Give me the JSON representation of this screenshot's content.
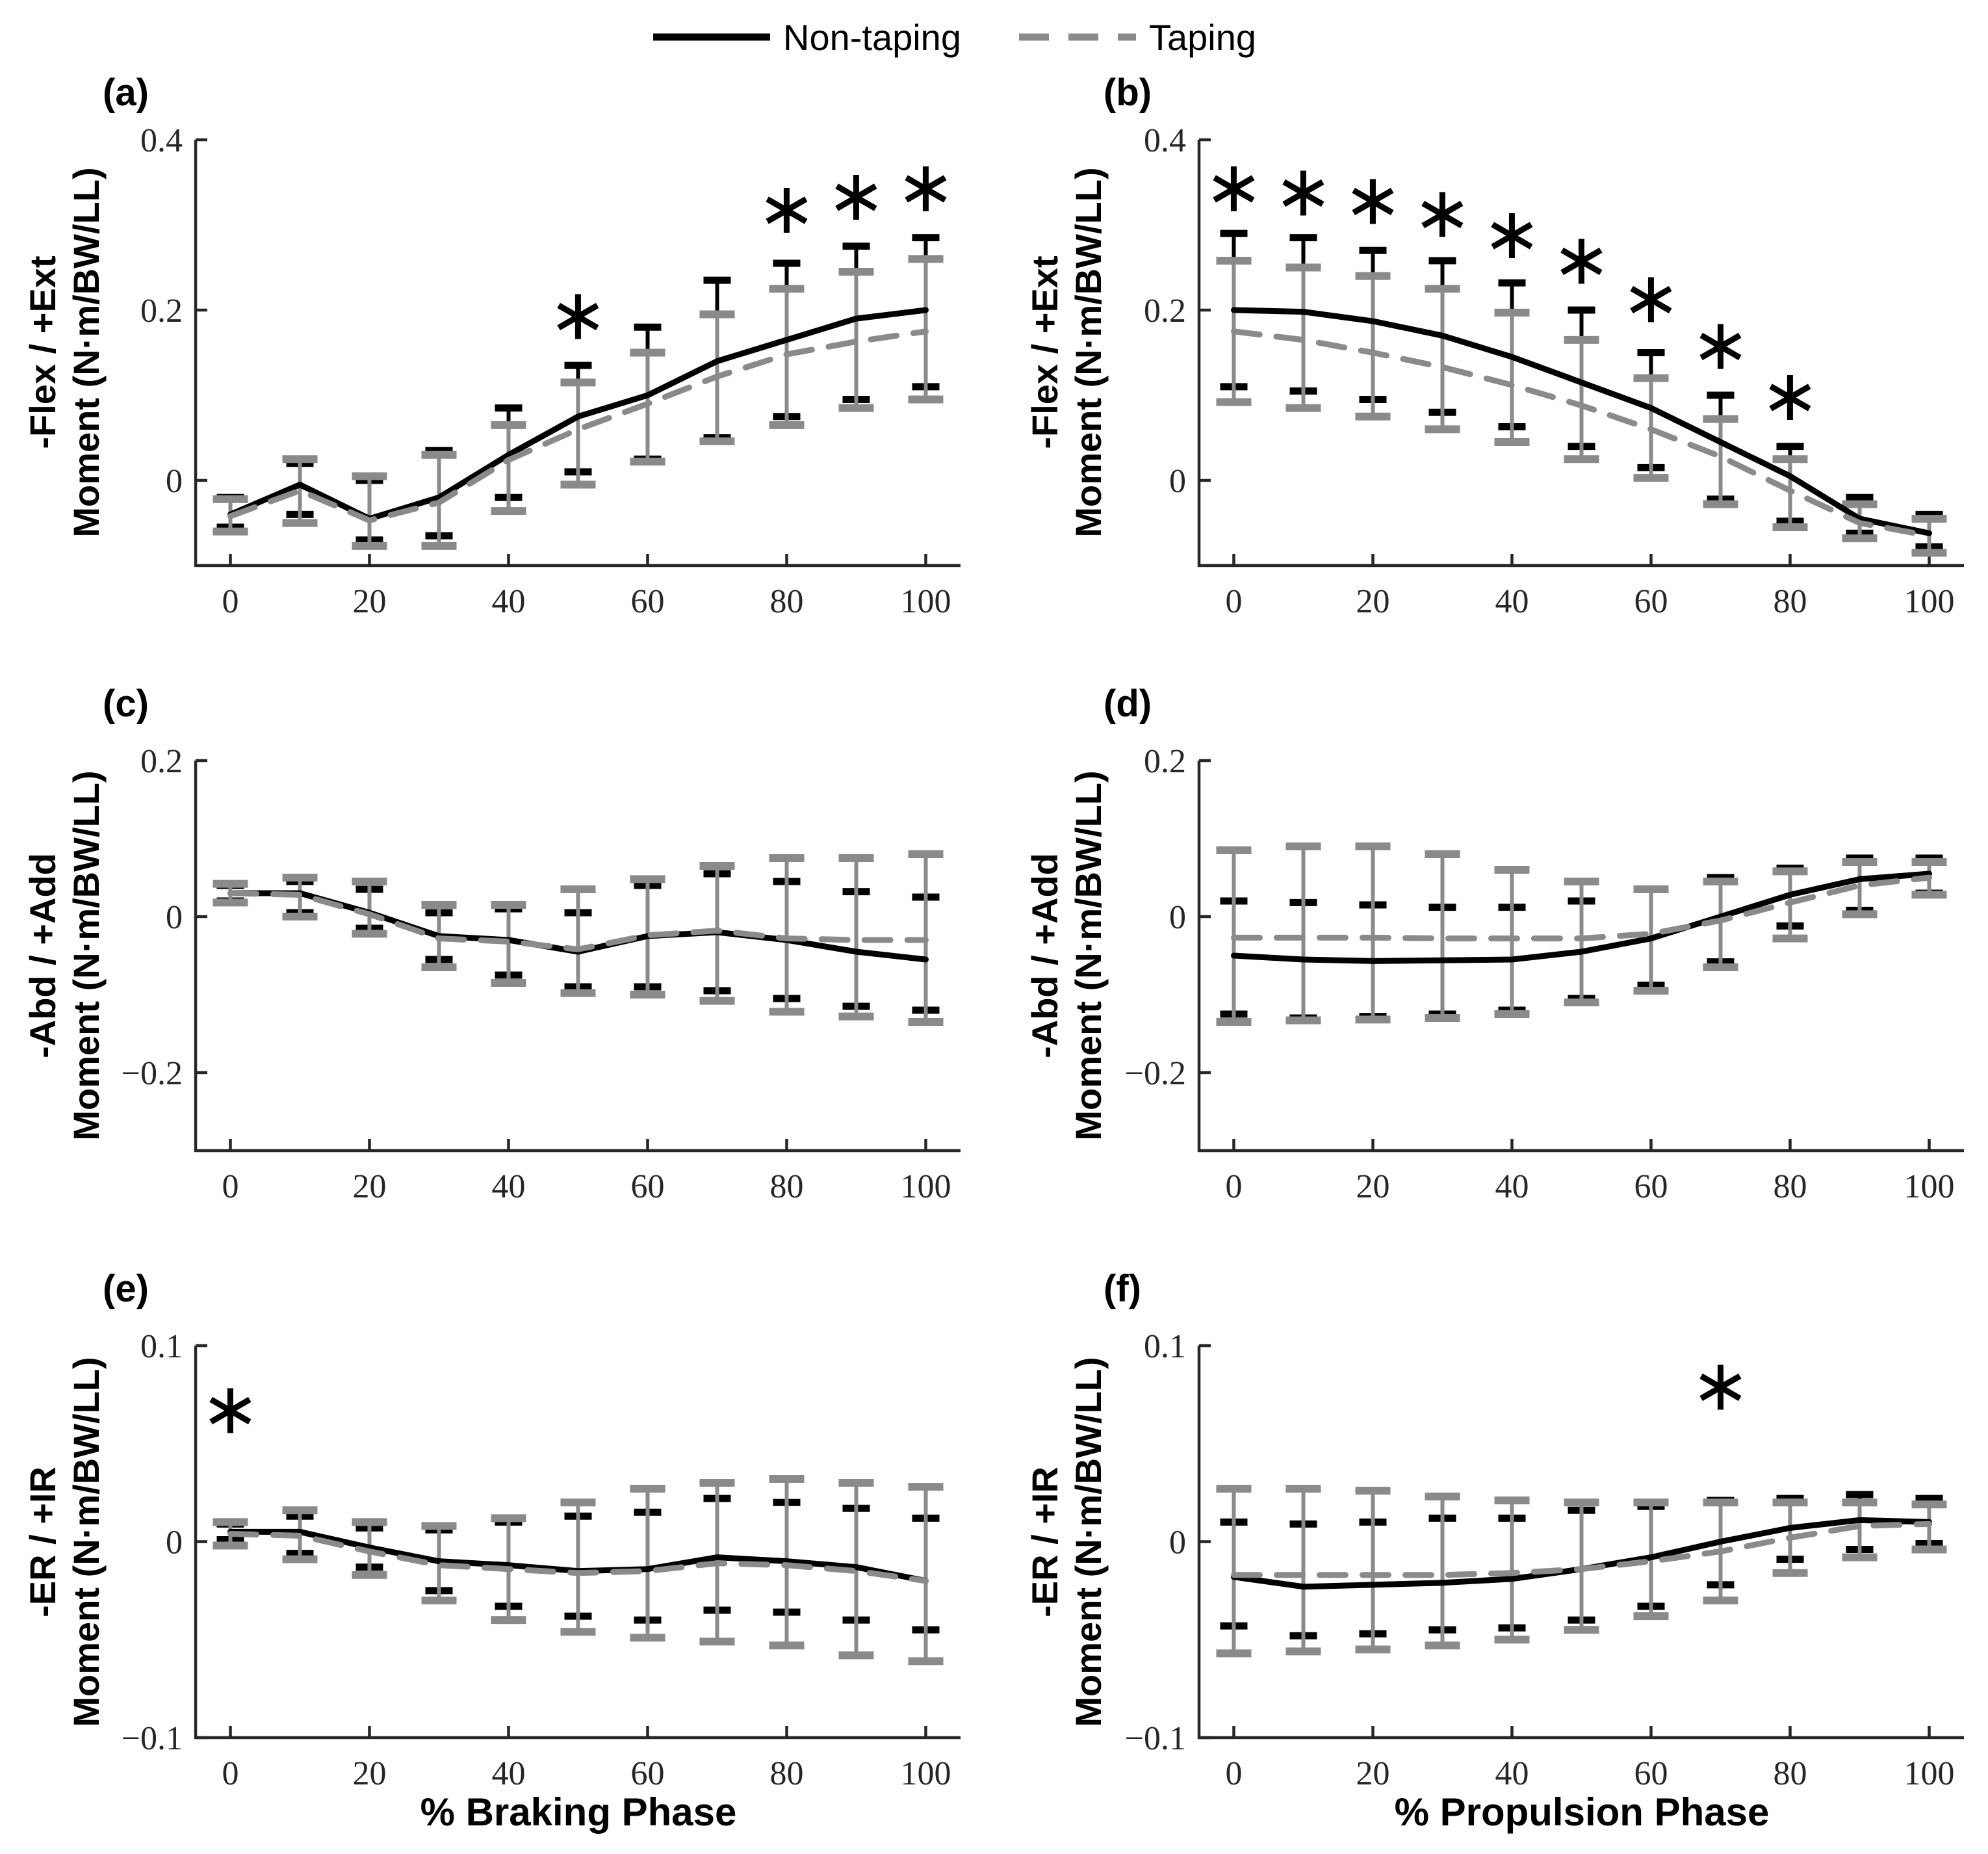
{
  "legend": {
    "entries": [
      {
        "label": "Non-taping",
        "style": "solid",
        "color": "#000000"
      },
      {
        "label": "Taping",
        "style": "dashed",
        "color": "#8a8a8a"
      }
    ]
  },
  "chart_data": [
    {
      "id": "a",
      "type": "line",
      "panel_label": "(a)",
      "ylabel_line1": "-Flex / +Ext",
      "ylabel_line2": "Moment (N·m/BW/LL)",
      "xlabel": "",
      "x": [
        0,
        10,
        20,
        30,
        40,
        50,
        60,
        70,
        80,
        90,
        100
      ],
      "xlim": [
        -5,
        105
      ],
      "ylim": [
        -0.1,
        0.4
      ],
      "xtick_values": [
        0,
        20,
        40,
        60,
        80,
        100
      ],
      "xtick_labels": [
        "0",
        "20",
        "40",
        "60",
        "80",
        "100"
      ],
      "ytick_values": [
        0,
        0.2,
        0.4
      ],
      "ytick_labels": [
        "0",
        "0.2",
        "0.4"
      ],
      "series": [
        {
          "name": "Non-taping",
          "color": "#000000",
          "style": "solid",
          "values": [
            -0.04,
            -0.005,
            -0.045,
            -0.02,
            0.03,
            0.075,
            0.1,
            0.14,
            0.165,
            0.19,
            0.2
          ],
          "err_up": [
            -0.02,
            0.02,
            0.0,
            0.035,
            0.085,
            0.135,
            0.18,
            0.235,
            0.255,
            0.275,
            0.285
          ],
          "err_lo": [
            -0.055,
            -0.04,
            -0.07,
            -0.065,
            -0.02,
            0.01,
            0.025,
            0.05,
            0.075,
            0.095,
            0.11
          ]
        },
        {
          "name": "Taping",
          "color": "#8a8a8a",
          "style": "dashed",
          "values": [
            -0.042,
            -0.012,
            -0.047,
            -0.026,
            0.024,
            0.06,
            0.09,
            0.122,
            0.148,
            0.163,
            0.175
          ],
          "err_up": [
            -0.022,
            0.025,
            0.005,
            0.03,
            0.065,
            0.115,
            0.15,
            0.195,
            0.225,
            0.245,
            0.26
          ],
          "err_lo": [
            -0.06,
            -0.05,
            -0.077,
            -0.077,
            -0.036,
            -0.005,
            0.022,
            0.046,
            0.065,
            0.085,
            0.095
          ]
        }
      ],
      "asterisks": [
        {
          "x": 50,
          "y": 0.195
        },
        {
          "x": 80,
          "y": 0.32
        },
        {
          "x": 90,
          "y": 0.335
        },
        {
          "x": 100,
          "y": 0.345
        }
      ]
    },
    {
      "id": "b",
      "type": "line",
      "panel_label": "(b)",
      "ylabel_line1": "-Flex / +Ext",
      "ylabel_line2": "Moment (N·m/BW/LL)",
      "xlabel": "",
      "x": [
        0,
        10,
        20,
        30,
        40,
        50,
        60,
        70,
        80,
        90,
        100
      ],
      "xlim": [
        -5,
        105
      ],
      "ylim": [
        -0.1,
        0.4
      ],
      "xtick_values": [
        0,
        20,
        40,
        60,
        80,
        100
      ],
      "xtick_labels": [
        "0",
        "20",
        "40",
        "60",
        "80",
        "100"
      ],
      "ytick_values": [
        0,
        0.2,
        0.4
      ],
      "ytick_labels": [
        "0",
        "0.2",
        "0.4"
      ],
      "series": [
        {
          "name": "Non-taping",
          "color": "#000000",
          "style": "solid",
          "values": [
            0.2,
            0.198,
            0.187,
            0.17,
            0.145,
            0.115,
            0.085,
            0.045,
            0.005,
            -0.045,
            -0.062
          ],
          "err_up": [
            0.29,
            0.285,
            0.27,
            0.258,
            0.232,
            0.2,
            0.15,
            0.1,
            0.04,
            -0.02,
            -0.04
          ],
          "err_lo": [
            0.11,
            0.105,
            0.095,
            0.08,
            0.063,
            0.04,
            0.015,
            -0.022,
            -0.048,
            -0.062,
            -0.078
          ]
        },
        {
          "name": "Taping",
          "color": "#8a8a8a",
          "style": "dashed",
          "values": [
            0.175,
            0.165,
            0.15,
            0.133,
            0.112,
            0.088,
            0.06,
            0.028,
            -0.012,
            -0.05,
            -0.065
          ],
          "err_up": [
            0.258,
            0.25,
            0.24,
            0.225,
            0.197,
            0.165,
            0.12,
            0.072,
            0.025,
            -0.028,
            -0.045
          ],
          "err_lo": [
            0.092,
            0.085,
            0.075,
            0.06,
            0.045,
            0.025,
            0.003,
            -0.028,
            -0.055,
            -0.068,
            -0.085
          ]
        }
      ],
      "asterisks": [
        {
          "x": 0,
          "y": 0.345
        },
        {
          "x": 10,
          "y": 0.34
        },
        {
          "x": 20,
          "y": 0.33
        },
        {
          "x": 30,
          "y": 0.315
        },
        {
          "x": 40,
          "y": 0.29
        },
        {
          "x": 50,
          "y": 0.26
        },
        {
          "x": 60,
          "y": 0.215
        },
        {
          "x": 70,
          "y": 0.16
        },
        {
          "x": 80,
          "y": 0.1
        }
      ]
    },
    {
      "id": "c",
      "type": "line",
      "panel_label": "(c)",
      "ylabel_line1": "-Abd / +Add",
      "ylabel_line2": "Moment (N·m/BW/LL)",
      "xlabel": "",
      "x": [
        0,
        10,
        20,
        30,
        40,
        50,
        60,
        70,
        80,
        90,
        100
      ],
      "xlim": [
        -5,
        105
      ],
      "ylim": [
        -0.3,
        0.2
      ],
      "xtick_values": [
        0,
        20,
        40,
        60,
        80,
        100
      ],
      "xtick_labels": [
        "0",
        "20",
        "40",
        "60",
        "80",
        "100"
      ],
      "ytick_values": [
        -0.2,
        0,
        0.2
      ],
      "ytick_labels": [
        "−0.2",
        "0",
        "0.2"
      ],
      "series": [
        {
          "name": "Non-taping",
          "color": "#000000",
          "style": "solid",
          "values": [
            0.03,
            0.03,
            0.005,
            -0.025,
            -0.03,
            -0.045,
            -0.025,
            -0.02,
            -0.03,
            -0.045,
            -0.055
          ],
          "err_up": [
            0.04,
            0.045,
            0.035,
            0.005,
            0.01,
            0.005,
            0.04,
            0.055,
            0.045,
            0.032,
            0.025
          ],
          "err_lo": [
            0.02,
            0.005,
            -0.015,
            -0.055,
            -0.075,
            -0.09,
            -0.09,
            -0.095,
            -0.105,
            -0.115,
            -0.12
          ]
        },
        {
          "name": "Taping",
          "color": "#8a8a8a",
          "style": "dashed",
          "values": [
            0.03,
            0.028,
            0.003,
            -0.028,
            -0.032,
            -0.042,
            -0.024,
            -0.018,
            -0.028,
            -0.03,
            -0.03
          ],
          "err_up": [
            0.042,
            0.05,
            0.045,
            0.015,
            0.015,
            0.035,
            0.048,
            0.065,
            0.075,
            0.075,
            0.08
          ],
          "err_lo": [
            0.018,
            0.0,
            -0.022,
            -0.065,
            -0.085,
            -0.098,
            -0.1,
            -0.108,
            -0.122,
            -0.128,
            -0.135
          ]
        }
      ],
      "asterisks": []
    },
    {
      "id": "d",
      "type": "line",
      "panel_label": "(d)",
      "ylabel_line1": "-Abd / +Add",
      "ylabel_line2": "Moment (N·m/BW/LL)",
      "xlabel": "",
      "x": [
        0,
        10,
        20,
        30,
        40,
        50,
        60,
        70,
        80,
        90,
        100
      ],
      "xlim": [
        -5,
        105
      ],
      "ylim": [
        -0.3,
        0.2
      ],
      "xtick_values": [
        0,
        20,
        40,
        60,
        80,
        100
      ],
      "xtick_labels": [
        "0",
        "20",
        "40",
        "60",
        "80",
        "100"
      ],
      "ytick_values": [
        -0.2,
        0,
        0.2
      ],
      "ytick_labels": [
        "−0.2",
        "0",
        "0.2"
      ],
      "series": [
        {
          "name": "Non-taping",
          "color": "#000000",
          "style": "solid",
          "values": [
            -0.05,
            -0.055,
            -0.057,
            -0.056,
            -0.055,
            -0.045,
            -0.028,
            0.0,
            0.028,
            0.048,
            0.055
          ],
          "err_up": [
            0.02,
            0.018,
            0.015,
            0.012,
            0.012,
            0.02,
            0.035,
            0.05,
            0.062,
            0.075,
            0.075
          ],
          "err_lo": [
            -0.125,
            -0.13,
            -0.128,
            -0.125,
            -0.12,
            -0.105,
            -0.088,
            -0.058,
            -0.012,
            0.008,
            0.03
          ]
        },
        {
          "name": "Taping",
          "color": "#8a8a8a",
          "style": "dashed",
          "values": [
            -0.027,
            -0.027,
            -0.027,
            -0.028,
            -0.028,
            -0.028,
            -0.022,
            -0.005,
            0.018,
            0.04,
            0.05
          ],
          "err_up": [
            0.085,
            0.09,
            0.09,
            0.08,
            0.06,
            0.045,
            0.035,
            0.045,
            0.058,
            0.07,
            0.07
          ],
          "err_lo": [
            -0.135,
            -0.133,
            -0.132,
            -0.13,
            -0.125,
            -0.11,
            -0.095,
            -0.065,
            -0.028,
            0.003,
            0.028
          ]
        }
      ],
      "asterisks": []
    },
    {
      "id": "e",
      "type": "line",
      "panel_label": "(e)",
      "ylabel_line1": "-ER / +IR",
      "ylabel_line2": "Moment (N·m/BW/LL)",
      "xlabel": "% Braking Phase",
      "x": [
        0,
        10,
        20,
        30,
        40,
        50,
        60,
        70,
        80,
        90,
        100
      ],
      "xlim": [
        -5,
        105
      ],
      "ylim": [
        -0.1,
        0.1
      ],
      "xtick_values": [
        0,
        20,
        40,
        60,
        80,
        100
      ],
      "xtick_labels": [
        "0",
        "20",
        "40",
        "60",
        "80",
        "100"
      ],
      "ytick_values": [
        -0.1,
        0,
        0.1
      ],
      "ytick_labels": [
        "−0.1",
        "0",
        "0.1"
      ],
      "series": [
        {
          "name": "Non-taping",
          "color": "#000000",
          "style": "solid",
          "values": [
            0.005,
            0.005,
            -0.003,
            -0.01,
            -0.012,
            -0.015,
            -0.014,
            -0.008,
            -0.01,
            -0.013,
            -0.02
          ],
          "err_up": [
            0.009,
            0.013,
            0.007,
            0.006,
            0.01,
            0.013,
            0.015,
            0.022,
            0.02,
            0.017,
            0.012
          ],
          "err_lo": [
            0.001,
            -0.006,
            -0.013,
            -0.025,
            -0.033,
            -0.038,
            -0.04,
            -0.035,
            -0.036,
            -0.04,
            -0.045
          ]
        },
        {
          "name": "Taping",
          "color": "#8a8a8a",
          "style": "dashed",
          "values": [
            0.004,
            0.003,
            -0.005,
            -0.012,
            -0.014,
            -0.016,
            -0.015,
            -0.011,
            -0.012,
            -0.015,
            -0.02
          ],
          "err_up": [
            0.01,
            0.016,
            0.01,
            0.008,
            0.012,
            0.02,
            0.027,
            0.03,
            0.032,
            0.03,
            0.028
          ],
          "err_lo": [
            -0.002,
            -0.009,
            -0.017,
            -0.03,
            -0.04,
            -0.046,
            -0.049,
            -0.051,
            -0.053,
            -0.058,
            -0.061
          ]
        }
      ],
      "asterisks": [
        {
          "x": 0,
          "y": 0.068
        }
      ]
    },
    {
      "id": "f",
      "type": "line",
      "panel_label": "(f)",
      "ylabel_line1": "-ER / +IR",
      "ylabel_line2": "Moment (N·m/BW/LL)",
      "xlabel": "% Propulsion Phase",
      "x": [
        0,
        10,
        20,
        30,
        40,
        50,
        60,
        70,
        80,
        90,
        100
      ],
      "xlim": [
        -5,
        105
      ],
      "ylim": [
        -0.1,
        0.1
      ],
      "xtick_values": [
        0,
        20,
        40,
        60,
        80,
        100
      ],
      "xtick_labels": [
        "0",
        "20",
        "40",
        "60",
        "80",
        "100"
      ],
      "ytick_values": [
        -0.1,
        0,
        0.1
      ],
      "ytick_labels": [
        "−0.1",
        "0",
        "0.1"
      ],
      "series": [
        {
          "name": "Non-taping",
          "color": "#000000",
          "style": "solid",
          "values": [
            -0.018,
            -0.023,
            -0.022,
            -0.021,
            -0.019,
            -0.014,
            -0.008,
            0.0,
            0.007,
            0.011,
            0.01
          ],
          "err_up": [
            0.01,
            0.009,
            0.01,
            0.012,
            0.012,
            0.016,
            0.018,
            0.021,
            0.022,
            0.024,
            0.022
          ],
          "err_lo": [
            -0.043,
            -0.048,
            -0.047,
            -0.045,
            -0.044,
            -0.04,
            -0.033,
            -0.022,
            -0.009,
            -0.004,
            -0.001
          ]
        },
        {
          "name": "Taping",
          "color": "#8a8a8a",
          "style": "dashed",
          "values": [
            -0.017,
            -0.017,
            -0.017,
            -0.017,
            -0.016,
            -0.014,
            -0.01,
            -0.005,
            0.002,
            0.008,
            0.009
          ],
          "err_up": [
            0.027,
            0.027,
            0.026,
            0.023,
            0.021,
            0.02,
            0.02,
            0.02,
            0.02,
            0.02,
            0.019
          ],
          "err_lo": [
            -0.057,
            -0.056,
            -0.055,
            -0.053,
            -0.05,
            -0.045,
            -0.038,
            -0.03,
            -0.016,
            -0.008,
            -0.004
          ]
        }
      ],
      "asterisks": [
        {
          "x": 70,
          "y": 0.08
        }
      ]
    }
  ]
}
